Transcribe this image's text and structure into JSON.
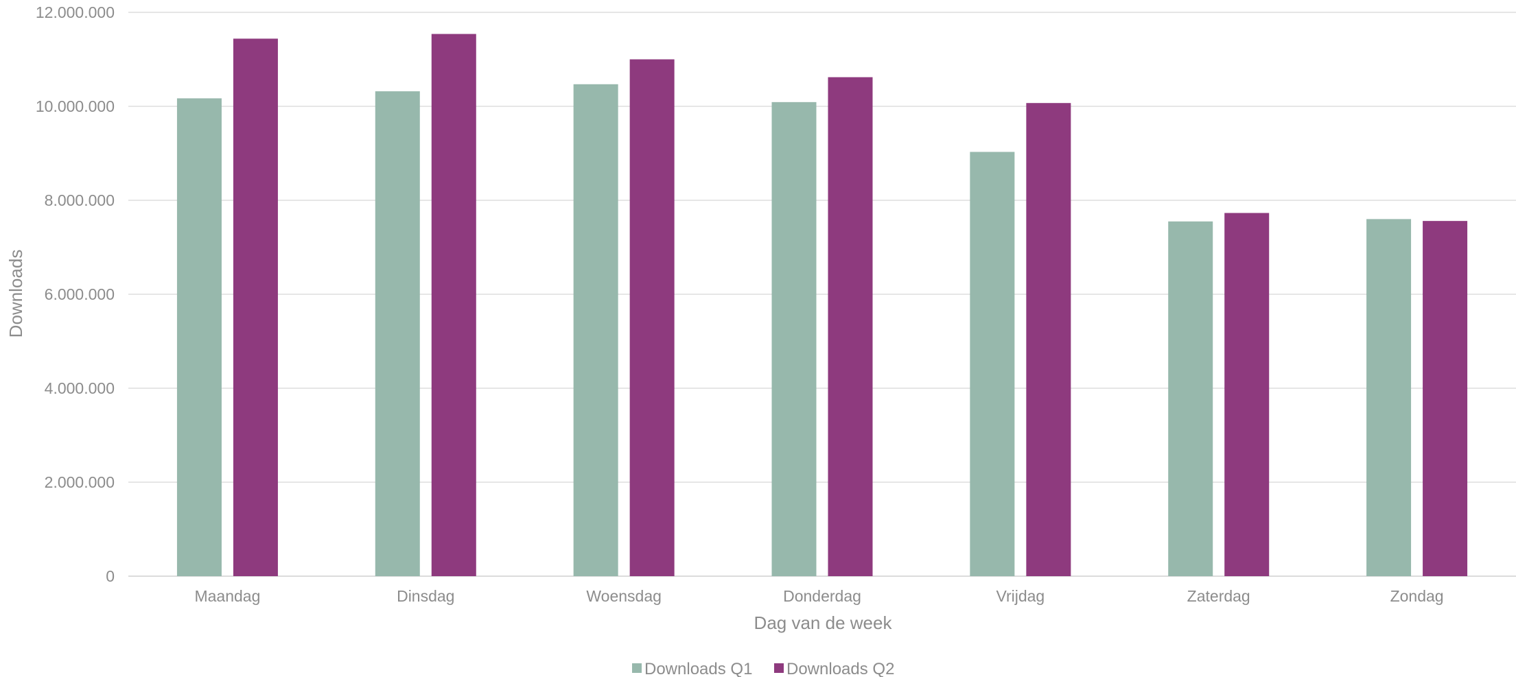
{
  "chart_data": {
    "type": "bar",
    "title": "",
    "xlabel": "Dag van de week",
    "ylabel": "Downloads",
    "categories": [
      "Maandag",
      "Dinsdag",
      "Woensdag",
      "Donderdag",
      "Vrijdag",
      "Zaterdag",
      "Zondag"
    ],
    "series": [
      {
        "name": "Downloads Q1",
        "color": "#97b8ac",
        "values": [
          10170000,
          10320000,
          10470000,
          10090000,
          9030000,
          7550000,
          7600000
        ]
      },
      {
        "name": "Downloads Q2",
        "color": "#8e3a7e",
        "values": [
          11440000,
          11540000,
          11000000,
          10620000,
          10070000,
          7730000,
          7560000
        ]
      }
    ],
    "ylim": [
      0,
      12000000
    ],
    "yticks": [
      0,
      2000000,
      4000000,
      6000000,
      8000000,
      10000000,
      12000000
    ],
    "ytick_labels": [
      "0",
      "2.000.000",
      "4.000.000",
      "6.000.000",
      "8.000.000",
      "10.000.000",
      "12.000.000"
    ],
    "grid": true,
    "legend": "bottom"
  }
}
